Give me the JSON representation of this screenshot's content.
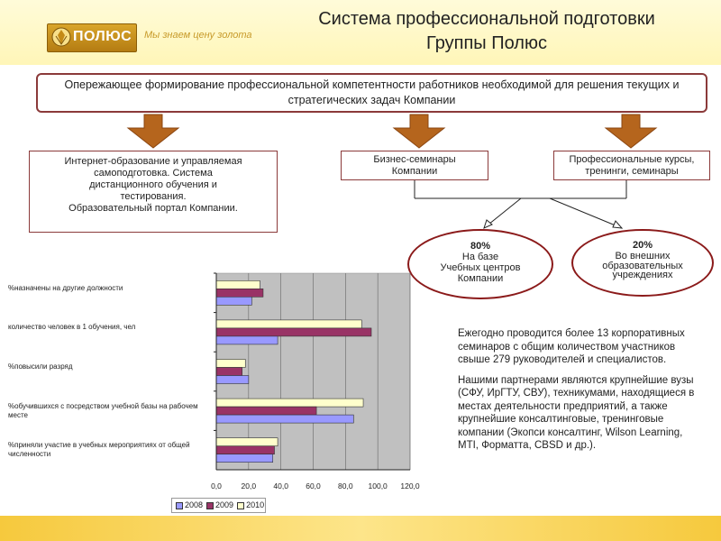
{
  "header": {
    "logo_text": "ПОЛЮС",
    "slogan": "Мы знаем цену золота",
    "title_line1": "Система профессиональной подготовки",
    "title_line2": "Группы Полюс"
  },
  "top_box": {
    "text": "Опережающее формирование профессиональной компетентности работников необходимой для решения текущих и стратегических задач Компании"
  },
  "boxes": {
    "internet": {
      "line1": "Интернет-образование и управляемая",
      "line2": "самоподготовка. Система",
      "line3": "дистанционного обучения и",
      "line4": "тестирования.",
      "line5": "Образовательный портал Компании."
    },
    "business": {
      "line1": "Бизнес-семинары",
      "line2": "Компании"
    },
    "courses": {
      "line1": "Профессиональные курсы,",
      "line2": "тренинги, семинары"
    }
  },
  "ellipses": {
    "left": {
      "pct": "80%",
      "line1": "На базе",
      "line2": "Учебных центров",
      "line3": "Компании"
    },
    "right": {
      "pct": "20%",
      "line1": "Во внешних",
      "line2": "образовательных",
      "line3": "учреждениях"
    }
  },
  "note": {
    "p1": "Ежегодно проводится более 13 корпоративных семинаров с общим количеством участников свыше 279 руководителей и специалистов.",
    "p2": "Нашими партнерами являются крупнейшие вузы (СФУ, ИрГТУ, СВУ), техникумами, находящиеся в местах деятельности предприятий, а также крупнейшие консалтинговые, тренинговые компании (Экопси консалтинг, Wilson Learning, MTI, Форматта, CBSD и др.)."
  },
  "colors": {
    "border": "#8b3a3a",
    "arrow": "#b5651d",
    "s2008": "#9999ff",
    "s2009": "#993366",
    "s2010": "#ffffcc"
  },
  "chart_data": {
    "type": "bar",
    "orientation": "horizontal",
    "categories": [
      "%назначены на другие должности",
      "количество человек в 1 обучения, чел",
      "%повысили разряд",
      "%обучившихся с посредством учебной базы на рабочем месте",
      "%приняли участие в учебных мероприятиях от общей численности"
    ],
    "series": [
      {
        "name": "2008",
        "values": [
          22,
          38,
          20,
          85,
          35
        ]
      },
      {
        "name": "2009",
        "values": [
          29,
          96,
          16,
          62,
          36
        ]
      },
      {
        "name": "2010",
        "values": [
          27,
          90,
          18,
          91,
          38
        ]
      }
    ],
    "xlim": [
      0,
      120
    ],
    "xticks": [
      "0,0",
      "20,0",
      "40,0",
      "60,0",
      "80,0",
      "100,0",
      "120,0"
    ],
    "grid": true,
    "legend": "bottom"
  }
}
